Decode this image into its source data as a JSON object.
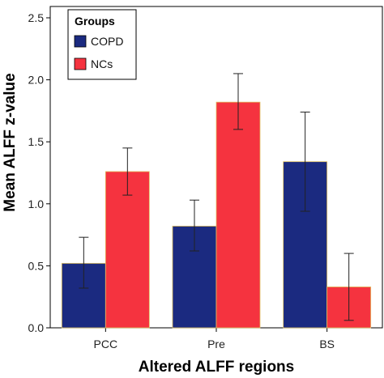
{
  "chart_data": {
    "type": "bar",
    "title": "",
    "xlabel": "Altered ALFF regions",
    "ylabel": "Mean ALFF z-value",
    "ylim": [
      0,
      2.5
    ],
    "yticks": [
      "0.0",
      "0.5",
      "1.0",
      "1.5",
      "2.0",
      "2.5"
    ],
    "categories": [
      "PCC",
      "Pre",
      "BS"
    ],
    "legend": {
      "title": "Groups",
      "position": "top-left"
    },
    "grid": false,
    "series": [
      {
        "name": "COPD",
        "color": "#1b2a80",
        "values": [
          0.52,
          0.82,
          1.34
        ],
        "error_low": [
          0.32,
          0.62,
          0.94
        ],
        "error_high": [
          0.73,
          1.03,
          1.74
        ]
      },
      {
        "name": "NCs",
        "color": "#f5333f",
        "values": [
          1.26,
          1.82,
          0.33
        ],
        "error_low": [
          1.07,
          1.6,
          0.06
        ],
        "error_high": [
          1.45,
          2.05,
          0.6
        ]
      }
    ]
  }
}
